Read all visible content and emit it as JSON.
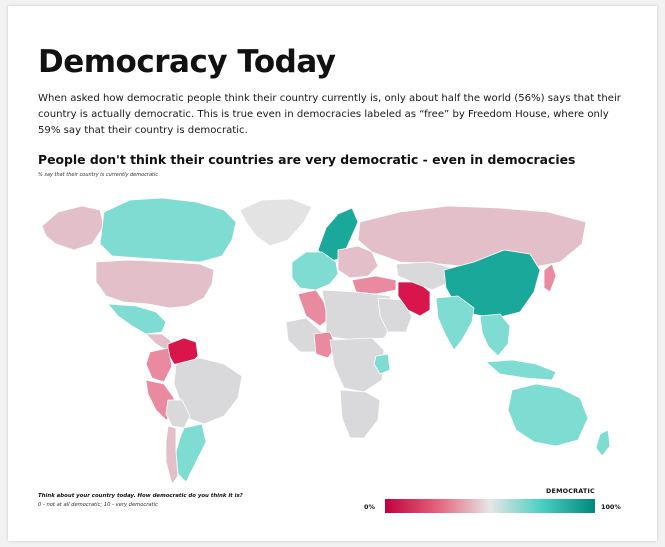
{
  "title": "Democracy Today",
  "intro": "When asked how democratic people think their country currently is, only about half the world (56%) says that their country is actually democratic. This is true even in democracies labeled as “free” by Freedom House, where only 59% say that their country is democratic.",
  "subtitle": "People don't think their countries are very democratic - even in democracies",
  "note": "% say that their country is currently democratic",
  "footer": {
    "question": "Think about your country today. How democratic do you think it is?",
    "scale": "0 - not at all democratic; 10 - very democratic"
  },
  "legend": {
    "title": "DEMOCRATIC",
    "min_label": "0%",
    "max_label": "100%",
    "colors": [
      "#c2003f",
      "#e4637a",
      "#e6e6e6",
      "#49cfc2",
      "#00887a"
    ]
  },
  "colors": {
    "no_data": "#e3e3e3",
    "very_low": "#d8164c",
    "low": "#e98aa0",
    "low_mid": "#e2bfc9",
    "mid": "#d9d9db",
    "high": "#7fdcd3",
    "very_high": "#1aa89a"
  },
  "map": {
    "regions": [
      {
        "name": "greenland",
        "level": "no_data"
      },
      {
        "name": "canada",
        "level": "high"
      },
      {
        "name": "alaska",
        "level": "low_mid"
      },
      {
        "name": "united-states",
        "level": "low_mid"
      },
      {
        "name": "mexico",
        "level": "high"
      },
      {
        "name": "central-america",
        "level": "low_mid"
      },
      {
        "name": "venezuela",
        "level": "very_low"
      },
      {
        "name": "colombia",
        "level": "low"
      },
      {
        "name": "brazil",
        "level": "mid"
      },
      {
        "name": "peru",
        "level": "low"
      },
      {
        "name": "bolivia",
        "level": "mid"
      },
      {
        "name": "argentina",
        "level": "high"
      },
      {
        "name": "chile",
        "level": "low_mid"
      },
      {
        "name": "scandinavia",
        "level": "very_high"
      },
      {
        "name": "western-europe",
        "level": "high"
      },
      {
        "name": "eastern-europe",
        "level": "low_mid"
      },
      {
        "name": "russia",
        "level": "low_mid"
      },
      {
        "name": "turkey",
        "level": "low"
      },
      {
        "name": "north-africa",
        "level": "mid"
      },
      {
        "name": "morocco",
        "level": "low"
      },
      {
        "name": "west-africa",
        "level": "mid"
      },
      {
        "name": "nigeria",
        "level": "low"
      },
      {
        "name": "central-africa",
        "level": "mid"
      },
      {
        "name": "kenya",
        "level": "high"
      },
      {
        "name": "southern-africa",
        "level": "mid"
      },
      {
        "name": "saudi-arabia",
        "level": "mid"
      },
      {
        "name": "iran",
        "level": "very_low"
      },
      {
        "name": "central-asia",
        "level": "mid"
      },
      {
        "name": "china",
        "level": "very_high"
      },
      {
        "name": "india",
        "level": "high"
      },
      {
        "name": "southeast-asia",
        "level": "high"
      },
      {
        "name": "japan",
        "level": "low"
      },
      {
        "name": "indonesia",
        "level": "high"
      },
      {
        "name": "australia",
        "level": "high"
      },
      {
        "name": "new-zealand",
        "level": "high"
      }
    ]
  }
}
